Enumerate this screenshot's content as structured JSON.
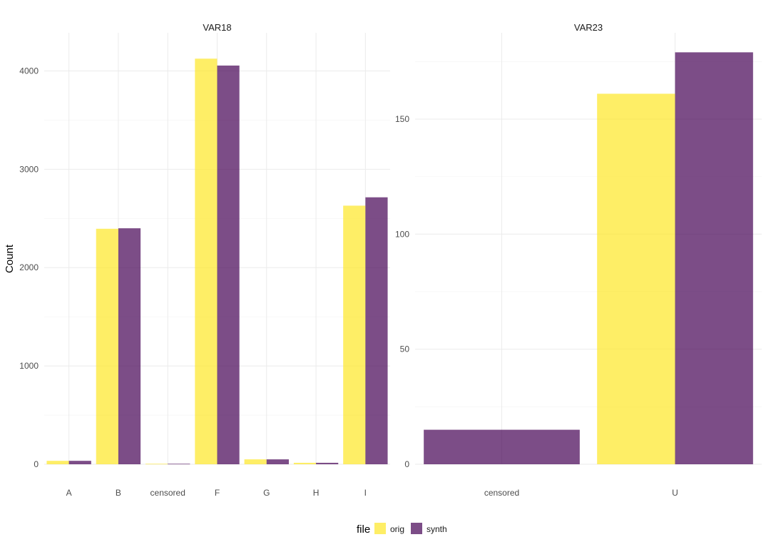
{
  "chart_data": [
    {
      "type": "bar",
      "title": "VAR18",
      "xlabel": "",
      "ylabel": "Count",
      "categories": [
        "A",
        "B",
        "censored",
        "F",
        "G",
        "H",
        "I"
      ],
      "series": [
        {
          "name": "orig",
          "values": [
            35,
            2395,
            5,
            4125,
            50,
            15,
            2630
          ]
        },
        {
          "name": "synth",
          "values": [
            35,
            2400,
            5,
            4055,
            50,
            15,
            2715
          ]
        }
      ],
      "ylim": [
        0,
        4330
      ],
      "yticks": [
        0,
        1000,
        2000,
        3000,
        4000
      ],
      "grid": true
    },
    {
      "type": "bar",
      "title": "VAR23",
      "xlabel": "",
      "ylabel": "",
      "categories": [
        "censored",
        "U"
      ],
      "series": [
        {
          "name": "orig",
          "values": [
            0,
            161
          ]
        },
        {
          "name": "synth",
          "values": [
            15,
            179
          ]
        }
      ],
      "ylim": [
        0,
        185
      ],
      "yticks": [
        0,
        50,
        100,
        150
      ],
      "grid": true
    }
  ],
  "legend": {
    "title": "file",
    "position": "bottom",
    "items": [
      {
        "label": "orig",
        "color": "#fde725"
      },
      {
        "label": "synth",
        "color": "#440154"
      }
    ]
  },
  "bar_opacity": 0.7
}
